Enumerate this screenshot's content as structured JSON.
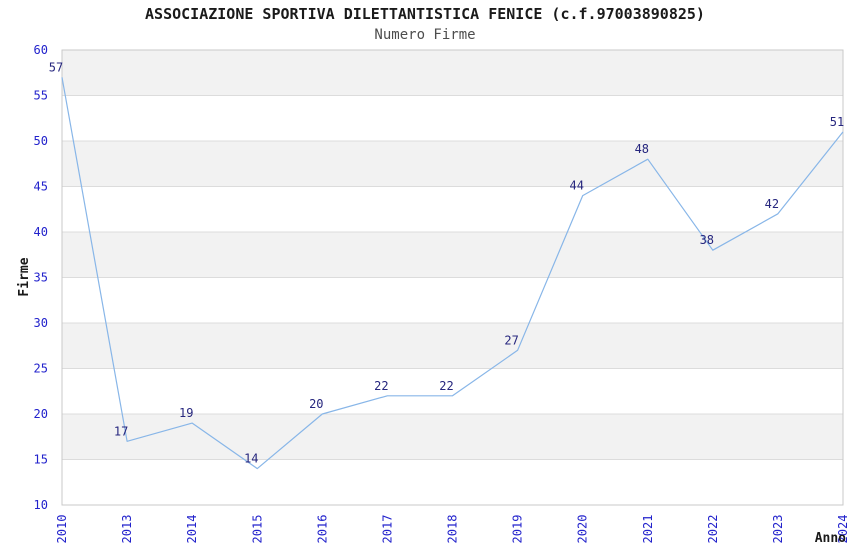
{
  "chart_data": {
    "type": "line",
    "title": "ASSOCIAZIONE SPORTIVA DILETTANTISTICA FENICE (c.f.97003890825)",
    "subtitle": "Numero Firme",
    "xlabel": "Anno",
    "ylabel": "Firme",
    "categories": [
      "2010",
      "2013",
      "2014",
      "2015",
      "2016",
      "2017",
      "2018",
      "2019",
      "2020",
      "2021",
      "2022",
      "2023",
      "2024"
    ],
    "values": [
      57,
      17,
      19,
      14,
      20,
      22,
      22,
      27,
      44,
      48,
      38,
      42,
      51
    ],
    "ylim": [
      10,
      60
    ],
    "yticks": [
      10,
      15,
      20,
      25,
      30,
      35,
      40,
      45,
      50,
      55,
      60
    ],
    "grid": "horizontal-bands-alternating",
    "legend": "none",
    "x_tick_rotation_deg": -90,
    "colors": {
      "line": "#88b6e8",
      "tick_label": "#2222cc",
      "data_label": "#26267e",
      "band_gray": "#f2f2f2",
      "band_white": "#ffffff",
      "gridline": "#dcdcdc",
      "plot_border": "#c9c9c9",
      "title": "#1a1a1a",
      "subtitle": "#4d4d4d",
      "axis_title": "#1a1a1a"
    }
  }
}
